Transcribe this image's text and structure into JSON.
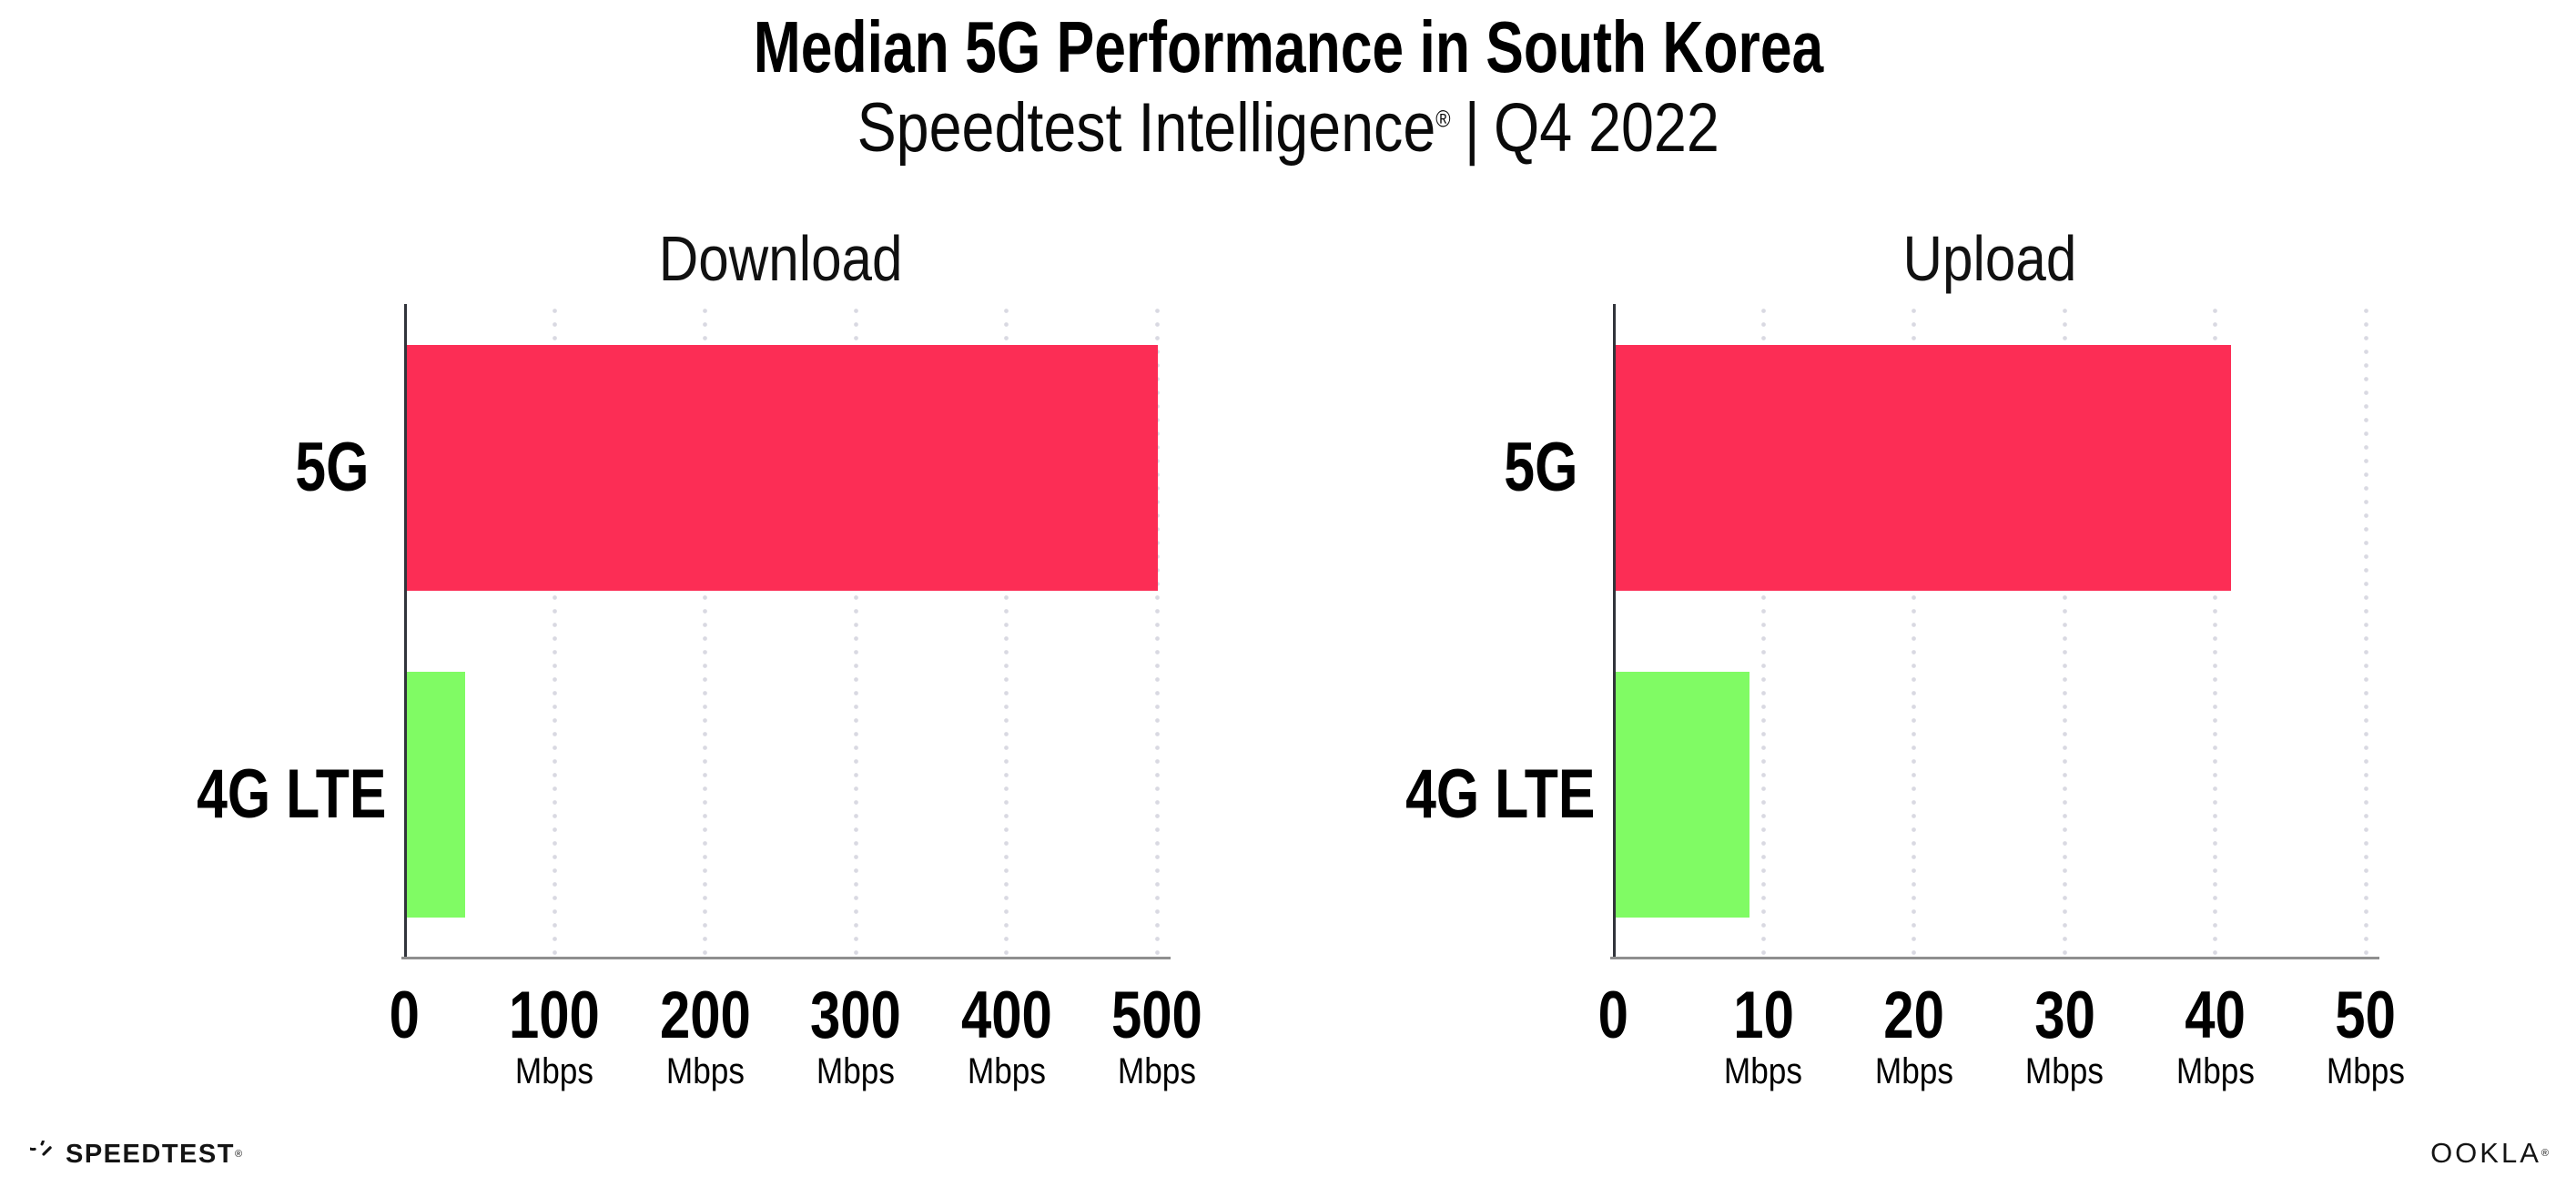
{
  "header": {
    "title": "Median 5G Performance in South Korea",
    "subtitle_brand": "Speedtest Intelligence",
    "subtitle_reg": "®",
    "subtitle_divider": "|",
    "subtitle_period": "Q4 2022"
  },
  "chart_data": [
    {
      "type": "bar",
      "orientation": "horizontal",
      "title": "Download",
      "categories": [
        "5G",
        "4G LTE"
      ],
      "values": [
        500,
        40
      ],
      "unit": "Mbps",
      "xlim": [
        0,
        500
      ],
      "xticks": [
        0,
        100,
        200,
        300,
        400,
        500
      ],
      "tick_unit_label": "Mbps",
      "bar_colors": [
        "#FC2D55",
        "#80FB64"
      ],
      "grid": "dotted-vertical",
      "legend": "none"
    },
    {
      "type": "bar",
      "orientation": "horizontal",
      "title": "Upload",
      "categories": [
        "5G",
        "4G LTE"
      ],
      "values": [
        41,
        9
      ],
      "unit": "Mbps",
      "xlim": [
        0,
        50
      ],
      "xticks": [
        0,
        10,
        20,
        30,
        40,
        50
      ],
      "tick_unit_label": "Mbps",
      "bar_colors": [
        "#FC2D55",
        "#80FB64"
      ],
      "grid": "dotted-vertical",
      "legend": "none"
    }
  ],
  "footer": {
    "speedtest_logo_text": "SPEEDTEST",
    "speedtest_reg": "®",
    "ookla_logo_text": "OOKLA",
    "ookla_reg": "®"
  },
  "colors": {
    "bar_5g": "#FC2D55",
    "bar_4g_lte": "#80FB64",
    "y_axis": "#31343B",
    "x_axis": "#8F8F8F",
    "grid_dot": "#D9D9E2",
    "text": "#000000"
  }
}
